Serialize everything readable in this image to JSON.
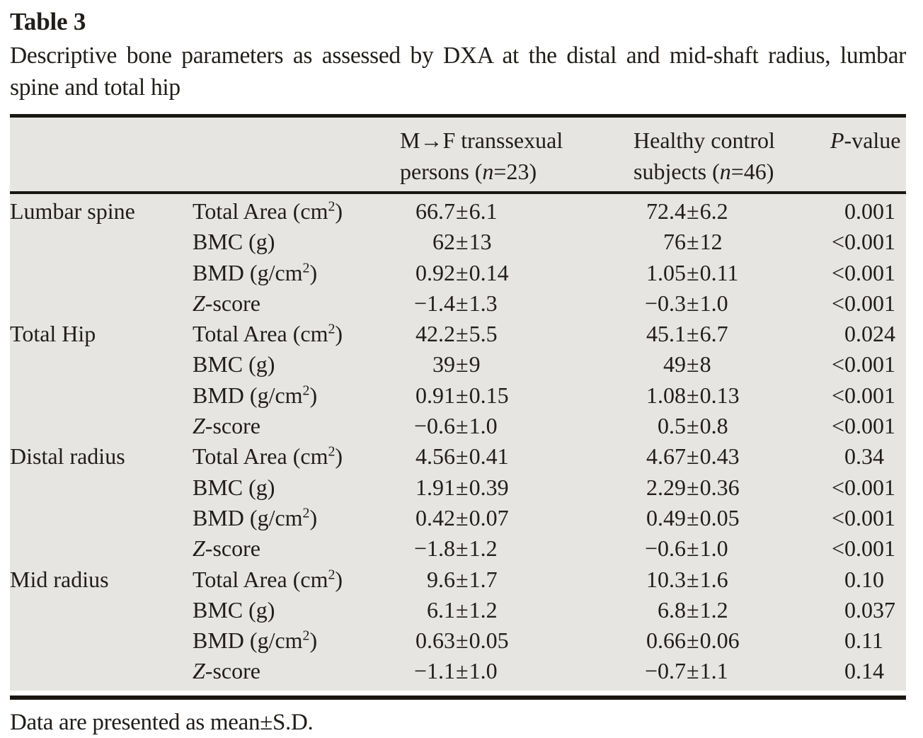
{
  "title": "Table 3",
  "caption": "Descriptive bone parameters as assessed by DXA at the distal and mid-shaft radius, lumbar spine and total hip",
  "footnote": "Data are presented as mean±S.D.",
  "symbols": {
    "pm": "±"
  },
  "colors": {
    "page_bg": "#ffffff",
    "table_bg": "#e6e5e2",
    "text": "#211d1a",
    "rule": "#1a1713"
  },
  "table": {
    "header": {
      "g1": {
        "l1": "M→F transsexual",
        "l2a": "persons (",
        "l2n": "n",
        "l2b": "=23)"
      },
      "g2": {
        "l1": "Healthy control",
        "l2a": "subjects (",
        "l2n": "n",
        "l2b": "=46)"
      },
      "p": {
        "a": "P",
        "b": "-value"
      }
    },
    "rows": [
      {
        "region": "Lumbar spine",
        "it": "",
        "pre": "Total Area (cm",
        "sup": "2",
        "post": ")",
        "g1m": "66.7",
        "g1s": "6.1",
        "g2m": "72.4",
        "g2s": "6.2",
        "pi": "0",
        "pf": ".001"
      },
      {
        "region": "",
        "it": "",
        "pre": "BMC (g)",
        "sup": "",
        "post": "",
        "g1m": "62",
        "g1s": "13",
        "g2m": "76",
        "g2s": "12",
        "pi": "<0",
        "pf": ".001"
      },
      {
        "region": "",
        "it": "",
        "pre": "BMD (g/cm",
        "sup": "2",
        "post": ")",
        "g1m": "0.92",
        "g1s": "0.14",
        "g2m": "1.05",
        "g2s": "0.11",
        "pi": "<0",
        "pf": ".001"
      },
      {
        "region": "",
        "it": "Z",
        "pre": "-score",
        "sup": "",
        "post": "",
        "g1m": "−1.4",
        "g1s": "1.3",
        "g2m": "−0.3",
        "g2s": "1.0",
        "pi": "<0",
        "pf": ".001"
      },
      {
        "region": "Total Hip",
        "it": "",
        "pre": "Total Area (cm",
        "sup": "2",
        "post": ")",
        "g1m": "42.2",
        "g1s": "5.5",
        "g2m": "45.1",
        "g2s": "6.7",
        "pi": "0",
        "pf": ".024"
      },
      {
        "region": "",
        "it": "",
        "pre": "BMC (g)",
        "sup": "",
        "post": "",
        "g1m": "39",
        "g1s": "9",
        "g2m": "49",
        "g2s": "8",
        "pi": "<0",
        "pf": ".001"
      },
      {
        "region": "",
        "it": "",
        "pre": "BMD (g/cm",
        "sup": "2",
        "post": ")",
        "g1m": "0.91",
        "g1s": "0.15",
        "g2m": "1.08",
        "g2s": "0.13",
        "pi": "<0",
        "pf": ".001"
      },
      {
        "region": "",
        "it": "Z",
        "pre": "-score",
        "sup": "",
        "post": "",
        "g1m": "−0.6",
        "g1s": "1.0",
        "g2m": "0.5",
        "g2s": "0.8",
        "pi": "<0",
        "pf": ".001"
      },
      {
        "region": "Distal radius",
        "it": "",
        "pre": "Total Area (cm",
        "sup": "2",
        "post": ")",
        "g1m": "4.56",
        "g1s": "0.41",
        "g2m": "4.67",
        "g2s": "0.43",
        "pi": "0",
        "pf": ".34"
      },
      {
        "region": "",
        "it": "",
        "pre": "BMC (g)",
        "sup": "",
        "post": "",
        "g1m": "1.91",
        "g1s": "0.39",
        "g2m": "2.29",
        "g2s": "0.36",
        "pi": "<0",
        "pf": ".001"
      },
      {
        "region": "",
        "it": "",
        "pre": "BMD (g/cm",
        "sup": "2",
        "post": ")",
        "g1m": "0.42",
        "g1s": "0.07",
        "g2m": "0.49",
        "g2s": "0.05",
        "pi": "<0",
        "pf": ".001"
      },
      {
        "region": "",
        "it": "Z",
        "pre": "-score",
        "sup": "",
        "post": "",
        "g1m": "−1.8",
        "g1s": "1.2",
        "g2m": "−0.6",
        "g2s": "1.0",
        "pi": "<0",
        "pf": ".001"
      },
      {
        "region": "Mid radius",
        "it": "",
        "pre": "Total Area (cm",
        "sup": "2",
        "post": ")",
        "g1m": "9.6",
        "g1s": "1.7",
        "g2m": "10.3",
        "g2s": "1.6",
        "pi": "0",
        "pf": ".10"
      },
      {
        "region": "",
        "it": "",
        "pre": "BMC (g)",
        "sup": "",
        "post": "",
        "g1m": "6.1",
        "g1s": "1.2",
        "g2m": "6.8",
        "g2s": "1.2",
        "pi": "0",
        "pf": ".037"
      },
      {
        "region": "",
        "it": "",
        "pre": "BMD (g/cm",
        "sup": "2",
        "post": ")",
        "g1m": "0.63",
        "g1s": "0.05",
        "g2m": "0.66",
        "g2s": "0.06",
        "pi": "0",
        "pf": ".11"
      },
      {
        "region": "",
        "it": "Z",
        "pre": "-score",
        "sup": "",
        "post": "",
        "g1m": "−1.1",
        "g1s": "1.0",
        "g2m": "−0.7",
        "g2s": "1.1",
        "pi": "0",
        "pf": ".14"
      }
    ]
  }
}
